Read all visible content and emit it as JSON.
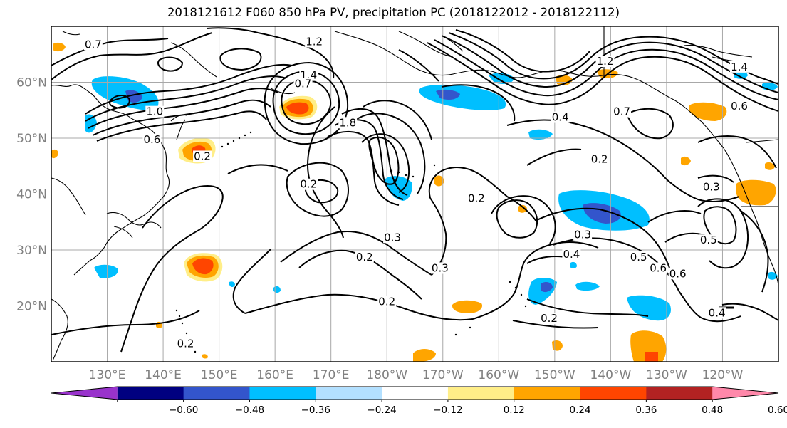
{
  "title": "2018121612 F060 850 hPa PV, precipitation PC (2018122012 - 2018122112)",
  "map": {
    "lon_ticks": [
      "130°E",
      "140°E",
      "150°E",
      "160°E",
      "170°E",
      "180°W",
      "170°W",
      "160°W",
      "150°W",
      "140°W",
      "130°W",
      "120°W"
    ],
    "lat_ticks": [
      "60°N",
      "50°N",
      "40°N",
      "30°N",
      "20°N"
    ],
    "grid": true
  },
  "colorbar": {
    "tick_labels": [
      "−0.60",
      "−0.48",
      "−0.36",
      "−0.24",
      "−0.12",
      "0.12",
      "0.24",
      "0.36",
      "0.48",
      "0.60"
    ],
    "colors": [
      "#9933cc",
      "#000080",
      "#3355cc",
      "#00bfff",
      "#b3e0ff",
      "#ffffff",
      "#ffee88",
      "#ffa500",
      "#ff4500",
      "#b22222",
      "#ff88aa"
    ],
    "extend": "both"
  },
  "contour_labels": [
    {
      "text": "0.7",
      "lon": 127.5,
      "lat": 66.5
    },
    {
      "text": "1.2",
      "lon": 167,
      "lat": 67
    },
    {
      "text": "1.4",
      "lon": 166,
      "lat": 61
    },
    {
      "text": "0.7",
      "lon": 165,
      "lat": 59.5
    },
    {
      "text": "1.0",
      "lon": 138.5,
      "lat": 54.5
    },
    {
      "text": "0.6",
      "lon": 138,
      "lat": 49.5
    },
    {
      "text": "0.2",
      "lon": 147,
      "lat": 46.5
    },
    {
      "text": "1.8",
      "lon": 173,
      "lat": 52.5
    },
    {
      "text": "0.2",
      "lon": 166,
      "lat": 41.5
    },
    {
      "text": "0.2",
      "lon": 196,
      "lat": 39
    },
    {
      "text": "0.3",
      "lon": 181,
      "lat": 32
    },
    {
      "text": "0.2",
      "lon": 176,
      "lat": 28.5
    },
    {
      "text": "0.3",
      "lon": 189.5,
      "lat": 26.5
    },
    {
      "text": "0.2",
      "lon": 180,
      "lat": 20.5
    },
    {
      "text": "0.2",
      "lon": 144,
      "lat": 13
    },
    {
      "text": "0.3",
      "lon": 215,
      "lat": 32.5
    },
    {
      "text": "0.4",
      "lon": 213,
      "lat": 29
    },
    {
      "text": "0.2",
      "lon": 218,
      "lat": 46
    },
    {
      "text": "0.4",
      "lon": 211,
      "lat": 53.5
    },
    {
      "text": "0.7",
      "lon": 222,
      "lat": 54.5
    },
    {
      "text": "1.2",
      "lon": 219,
      "lat": 63.5
    },
    {
      "text": "0.3",
      "lon": 238,
      "lat": 41
    },
    {
      "text": "0.5",
      "lon": 237.5,
      "lat": 31.5
    },
    {
      "text": "0.5",
      "lon": 225,
      "lat": 28.5
    },
    {
      "text": "0.6",
      "lon": 228.5,
      "lat": 26.5
    },
    {
      "text": "0.6",
      "lon": 232,
      "lat": 25.5
    },
    {
      "text": "0.4",
      "lon": 239,
      "lat": 18.5
    },
    {
      "text": "0.2",
      "lon": 209,
      "lat": 17.5
    },
    {
      "text": "1.4",
      "lon": 243,
      "lat": 62.5
    },
    {
      "text": "0.6",
      "lon": 243,
      "lat": 55.5
    }
  ]
}
